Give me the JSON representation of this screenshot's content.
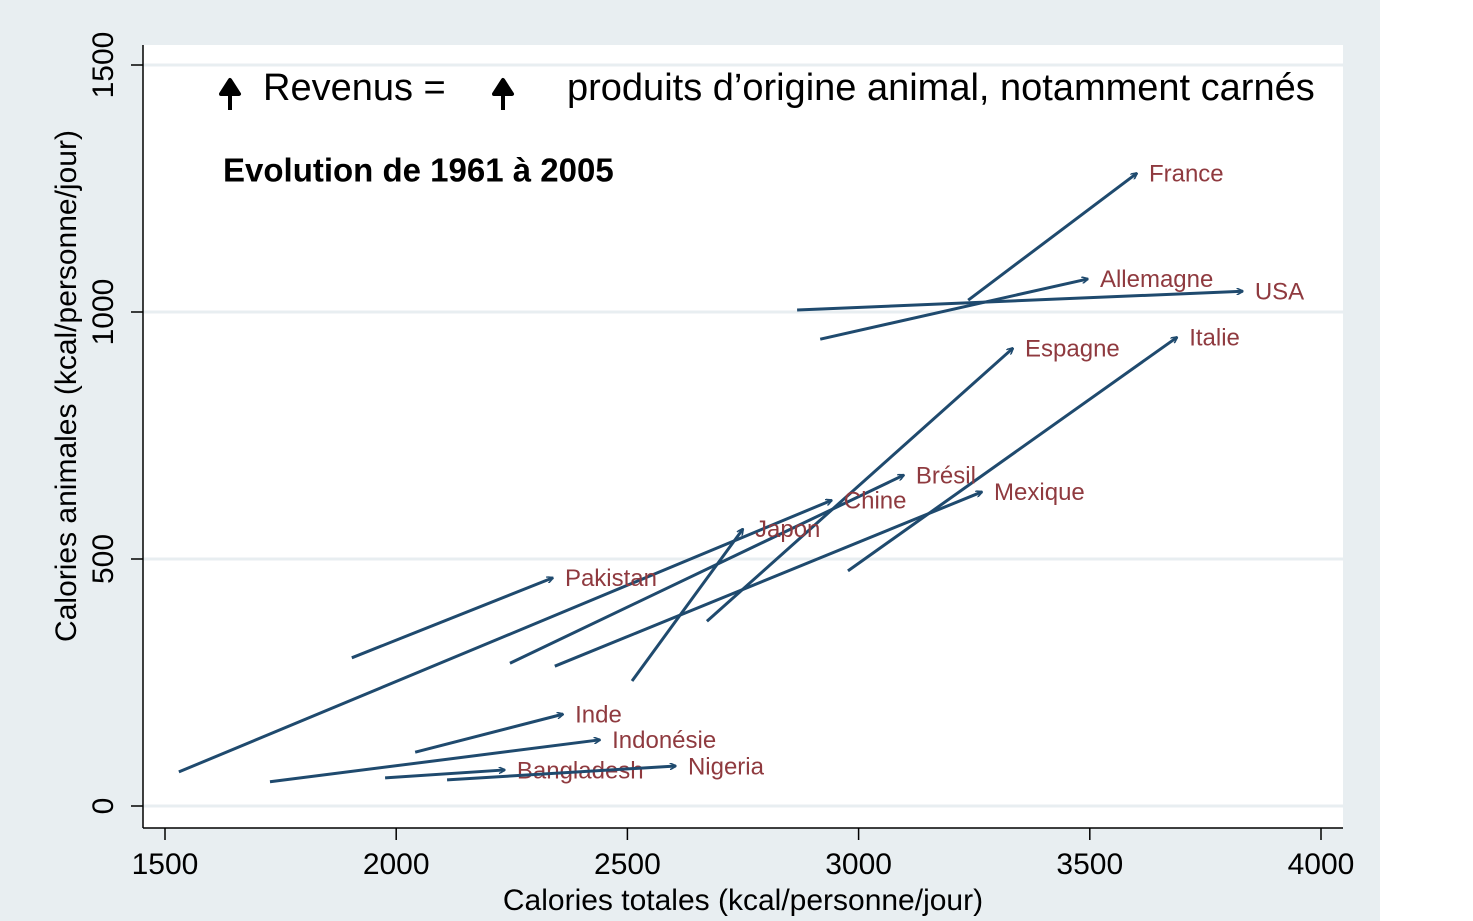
{
  "chart_data": {
    "type": "arrow",
    "annotation_left": "Revenus =",
    "annotation_right": "produits d’origine animal, notamment carnés",
    "subtitle": "Evolution de 1961 à 2005",
    "xlabel": "Calories totales (kcal/personne/jour)",
    "ylabel": "Calories animales (kcal/personne/jour)",
    "xlim": [
      1500,
      4000
    ],
    "ylim": [
      0,
      1500
    ],
    "xticks": [
      1500,
      2000,
      2500,
      3000,
      3500,
      4000
    ],
    "yticks": [
      0,
      500,
      1000,
      1500
    ],
    "grid": true,
    "color": "#1f4a6e",
    "label_color": "#8f3a3f",
    "series": [
      {
        "name": "France",
        "x": [
          3237,
          3602
        ],
        "values": [
          1024,
          1281
        ]
      },
      {
        "name": "Allemagne",
        "x": [
          2917,
          3496
        ],
        "values": [
          945,
          1067
        ]
      },
      {
        "name": "USA",
        "x": [
          2867,
          3831
        ],
        "values": [
          1004,
          1042
        ]
      },
      {
        "name": "Espagne",
        "x": [
          2672,
          3334
        ],
        "values": [
          374,
          927
        ]
      },
      {
        "name": "Italie",
        "x": [
          2977,
          3689
        ],
        "values": [
          476,
          949
        ]
      },
      {
        "name": "Brésil",
        "x": [
          2246,
          3098
        ],
        "values": [
          289,
          670
        ]
      },
      {
        "name": "Chine",
        "x": [
          1530,
          2942
        ],
        "values": [
          69,
          619
        ]
      },
      {
        "name": "Mexique",
        "x": [
          2343,
          3267
        ],
        "values": [
          283,
          636
        ]
      },
      {
        "name": "Japon",
        "x": [
          2510,
          2750
        ],
        "values": [
          253,
          561
        ]
      },
      {
        "name": "Pakistan",
        "x": [
          1904,
          2339
        ],
        "values": [
          300,
          462
        ]
      },
      {
        "name": "Inde",
        "x": [
          2041,
          2361
        ],
        "values": [
          109,
          186
        ]
      },
      {
        "name": "Indonésie",
        "x": [
          1727,
          2441
        ],
        "values": [
          49,
          134
        ]
      },
      {
        "name": "Bangladesh",
        "x": [
          1976,
          2235
        ],
        "values": [
          57,
          73
        ]
      },
      {
        "name": "Nigeria",
        "x": [
          2110,
          2605
        ],
        "values": [
          53,
          81
        ]
      }
    ]
  }
}
